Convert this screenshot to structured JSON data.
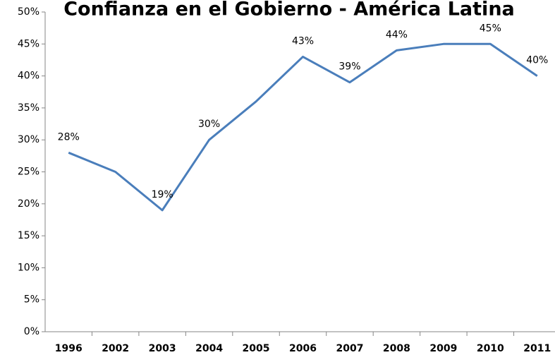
{
  "chart_data": {
    "type": "line",
    "title": "Confianza en el Gobierno - América Latina",
    "categories": [
      "1996",
      "2002",
      "2003",
      "2004",
      "2005",
      "2006",
      "2007",
      "2008",
      "2009",
      "2010",
      "2011"
    ],
    "series": [
      {
        "name": "Confianza",
        "color": "#4a7ebb",
        "values": [
          28,
          25,
          19,
          30,
          36,
          43,
          39,
          44,
          45,
          45,
          40
        ],
        "value_labels": [
          "28%",
          null,
          "19%",
          "30%",
          null,
          "43%",
          "39%",
          "44%",
          null,
          "45%",
          "40%"
        ]
      }
    ],
    "ylim": [
      0,
      50
    ],
    "yticks": [
      {
        "value": 0,
        "label": "0%"
      },
      {
        "value": 5,
        "label": "5%"
      },
      {
        "value": 10,
        "label": "10%"
      },
      {
        "value": 15,
        "label": "15%"
      },
      {
        "value": 20,
        "label": "20%"
      },
      {
        "value": 25,
        "label": "25%"
      },
      {
        "value": 30,
        "label": "30%"
      },
      {
        "value": 35,
        "label": "35%"
      },
      {
        "value": 40,
        "label": "40%"
      },
      {
        "value": 45,
        "label": "45%"
      },
      {
        "value": 50,
        "label": "50%"
      }
    ],
    "grid": false
  }
}
